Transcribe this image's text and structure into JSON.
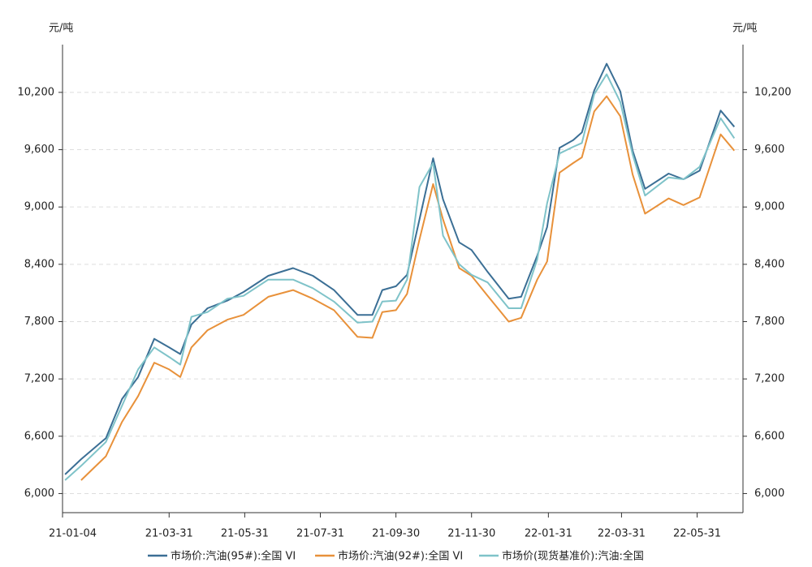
{
  "chart_data": {
    "type": "line",
    "y_unit": "元/吨",
    "x": [
      "21-01-06",
      "21-01-19",
      "21-02-08",
      "21-02-21",
      "21-03-06",
      "21-03-19",
      "21-03-31",
      "21-04-09",
      "21-04-18",
      "21-05-01",
      "21-05-17",
      "21-05-30",
      "21-06-19",
      "21-07-09",
      "21-07-25",
      "21-08-11",
      "21-08-30",
      "21-09-11",
      "21-09-19",
      "21-09-30",
      "21-10-09",
      "21-10-19",
      "21-10-30",
      "21-11-07",
      "21-11-20",
      "21-11-30",
      "21-12-13",
      "21-12-30",
      "22-01-09",
      "22-01-22",
      "22-01-30",
      "22-02-09",
      "22-02-20",
      "22-02-27",
      "22-03-09",
      "22-03-19",
      "22-03-30",
      "22-04-09",
      "22-04-19",
      "22-05-08",
      "22-05-20",
      "22-06-02",
      "22-06-19",
      "22-06-30"
    ],
    "series": [
      {
        "name": "市场价:汽油(95#):全国 VI",
        "color": "#3b6f95",
        "values": [
          6200,
          6360,
          6580,
          6990,
          7220,
          7620,
          7530,
          7460,
          7770,
          7940,
          8020,
          8110,
          8280,
          8360,
          8280,
          8130,
          7870,
          7870,
          8130,
          8170,
          8290,
          8870,
          9510,
          9080,
          8630,
          8550,
          8320,
          8040,
          8060,
          8490,
          8790,
          9620,
          9700,
          9780,
          10220,
          10500,
          10210,
          9590,
          9190,
          9350,
          9290,
          9380,
          10010,
          9840
        ]
      },
      {
        "name": "市场价:汽油(92#):全国 VI",
        "color": "#e8913a",
        "values": [
          null,
          6140,
          6390,
          6750,
          7020,
          7370,
          7300,
          7220,
          7530,
          7710,
          7820,
          7870,
          8060,
          8130,
          8040,
          7920,
          7640,
          7630,
          7900,
          7920,
          8090,
          8660,
          9240,
          8870,
          8360,
          8280,
          8070,
          7800,
          7840,
          8240,
          8430,
          9360,
          9460,
          9520,
          10000,
          10160,
          9950,
          9340,
          8930,
          9090,
          9020,
          9100,
          9760,
          9590
        ]
      },
      {
        "name": "市场价(现货基准价):汽油:全国",
        "color": "#7fc3c9",
        "values": [
          6140,
          6290,
          6540,
          6920,
          7300,
          7530,
          7430,
          7350,
          7850,
          7900,
          8040,
          8070,
          8240,
          8240,
          8150,
          8010,
          7790,
          7800,
          8010,
          8020,
          8240,
          9210,
          9460,
          8700,
          8400,
          8290,
          8210,
          7940,
          7940,
          8450,
          9040,
          9560,
          9630,
          9670,
          10180,
          10390,
          10100,
          9550,
          9120,
          9310,
          9290,
          9420,
          9930,
          9720
        ]
      }
    ],
    "xlim": [
      "21-01-04",
      "22-07-07"
    ],
    "xticks": [
      "21-01-04",
      "21-03-31",
      "21-05-31",
      "21-07-31",
      "21-09-30",
      "21-11-30",
      "22-01-31",
      "22-03-31",
      "22-05-31"
    ],
    "ylim": [
      5800,
      10700
    ],
    "yticks": [
      {
        "value": 6000,
        "label": "6,000"
      },
      {
        "value": 6600,
        "label": "6,600"
      },
      {
        "value": 7200,
        "label": "7,200"
      },
      {
        "value": 7800,
        "label": "7,800"
      },
      {
        "value": 8400,
        "label": "8,400"
      },
      {
        "value": 9000,
        "label": "9,000"
      },
      {
        "value": 9600,
        "label": "9,600"
      },
      {
        "value": 10200,
        "label": "10,200"
      }
    ],
    "y2lim": [
      5800,
      10700
    ],
    "y2ticks": [
      {
        "value": 6000,
        "label": "6,000"
      },
      {
        "value": 6600,
        "label": "6,600"
      },
      {
        "value": 7200,
        "label": "7,200"
      },
      {
        "value": 7800,
        "label": "7,800"
      },
      {
        "value": 8400,
        "label": "8,400"
      },
      {
        "value": 9000,
        "label": "9,000"
      },
      {
        "value": 9600,
        "label": "9,600"
      },
      {
        "value": 10200,
        "label": "10,200"
      }
    ],
    "grid": true,
    "legend": "bottom"
  }
}
